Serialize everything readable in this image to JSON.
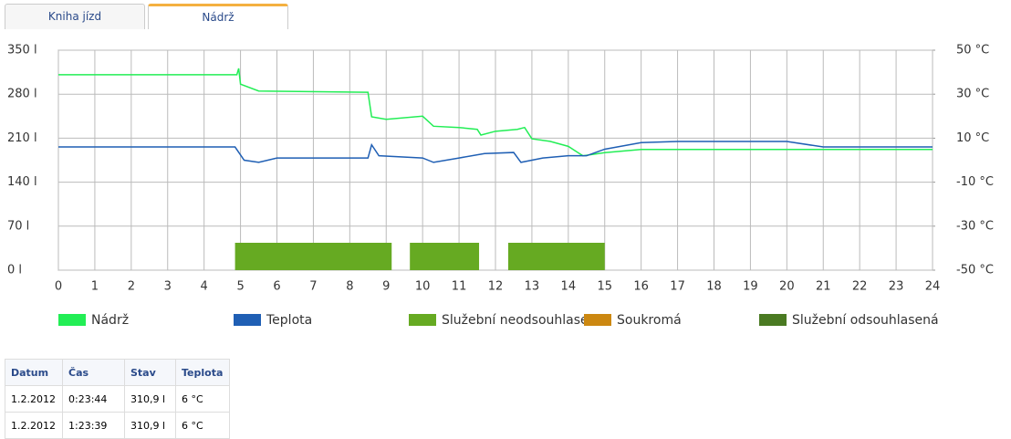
{
  "tabs": [
    "Kniha jízd",
    "Nádrž"
  ],
  "chart_data": {
    "type": "line",
    "xlim": [
      0,
      24
    ],
    "xticks": [
      0,
      1,
      2,
      3,
      4,
      5,
      6,
      7,
      8,
      9,
      10,
      11,
      12,
      13,
      14,
      15,
      16,
      17,
      18,
      19,
      20,
      21,
      22,
      23,
      24
    ],
    "ylim": [
      0,
      350
    ],
    "yticks": [
      {
        "value": 0,
        "label": "0 l"
      },
      {
        "value": 70,
        "label": "70 l"
      },
      {
        "value": 140,
        "label": "140 l"
      },
      {
        "value": 210,
        "label": "210 l"
      },
      {
        "value": 280,
        "label": "280 l"
      },
      {
        "value": 350,
        "label": "350 l"
      }
    ],
    "y2lim": [
      -50,
      50
    ],
    "y2ticks": [
      {
        "value": -50,
        "label": "-50 °C"
      },
      {
        "value": -30,
        "label": "-30 °C"
      },
      {
        "value": -10,
        "label": "-10 °C"
      },
      {
        "value": 10,
        "label": "10 °C"
      },
      {
        "value": 30,
        "label": "30 °C"
      },
      {
        "value": 50,
        "label": "50 °C"
      }
    ],
    "grid": true,
    "series": [
      {
        "name": "Nádrž",
        "color": "#22ee55",
        "x": [
          0,
          4.9,
          4.95,
          5.0,
          5.5,
          8.5,
          8.6,
          9.0,
          10.0,
          10.3,
          11.0,
          11.5,
          11.6,
          12.0,
          12.6,
          12.8,
          13.0,
          13.5,
          14.0,
          14.4,
          15.0,
          16.0,
          24
        ],
        "values": [
          311,
          311,
          321,
          296,
          285,
          283,
          244,
          240,
          245,
          229,
          227,
          224,
          215,
          221,
          224,
          227,
          209,
          205,
          197,
          182,
          187,
          192,
          192
        ]
      },
      {
        "name": "Teplota",
        "color": "#1f5fb4",
        "axis": "y2",
        "x": [
          0,
          4.85,
          5.1,
          5.5,
          6,
          8.5,
          8.6,
          8.8,
          10,
          10.3,
          11,
          11.7,
          12.5,
          12.7,
          13.3,
          14,
          14.5,
          15,
          16,
          17,
          20,
          21,
          24
        ],
        "values": [
          6,
          6,
          0,
          -1,
          1,
          1,
          7,
          2,
          1,
          -1,
          1,
          3,
          3.5,
          -1,
          1,
          2,
          2,
          5,
          8,
          8.5,
          8.5,
          6,
          6
        ]
      },
      {
        "name": "Služební neodsouhlasená",
        "color": "#66aa22",
        "start": [
          4.85,
          9.65,
          12.35
        ],
        "end": [
          9.15,
          11.55,
          15.0
        ]
      },
      {
        "name": "Soukromá",
        "color": "#cc8811"
      },
      {
        "name": "Služební odsouhlasená",
        "color": "#4a7a22"
      }
    ]
  },
  "table": {
    "header": [
      "Datum",
      "Čas",
      "Stav",
      "Teplota"
    ],
    "rows": [
      [
        "1.2.2012",
        "0:23:44",
        "310,9 l",
        "6 °C"
      ],
      [
        "1.2.2012",
        "1:23:39",
        "310,9 l",
        "6 °C"
      ]
    ]
  }
}
